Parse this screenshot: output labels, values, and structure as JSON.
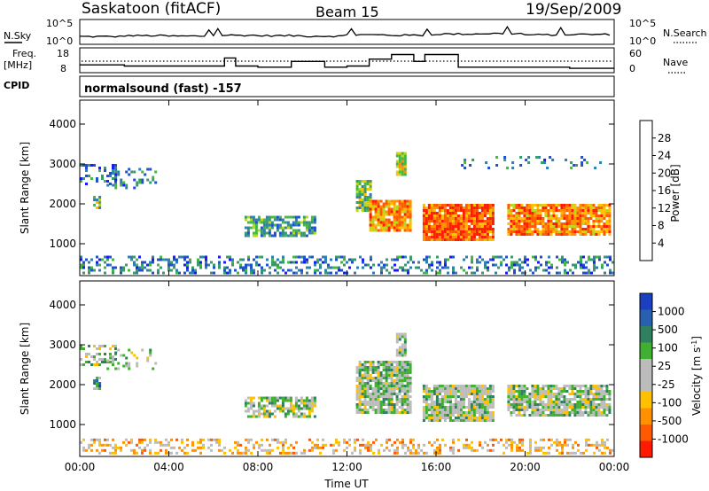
{
  "header": {
    "radar": "Saskatoon (fitACF)",
    "beam": "Beam 15",
    "date": "19/Sep/2009"
  },
  "noise_panel": {
    "left_label": "N.Sky",
    "right_label": "N.Search",
    "ticks_left": [
      "10^5",
      "10^0"
    ],
    "ticks_right": [
      "10^5",
      "10^0"
    ]
  },
  "freq_panel": {
    "left_label_line1": "Freq.",
    "left_label_line2": "[MHz]",
    "right_label": "Nave",
    "ticks_left": [
      "18",
      "8"
    ],
    "ticks_right": [
      "60",
      "0"
    ]
  },
  "cpid_panel": {
    "label": "CPID",
    "text": "normalsound (fast) -157"
  },
  "colors": {
    "power_scale": [
      "#1a1aff",
      "#2050d0",
      "#2f7fb0",
      "#3a9a6a",
      "#44b840",
      "#b8d820",
      "#ffc000",
      "#ff9000",
      "#ff5a00",
      "#ff1a00"
    ],
    "velocity_scale": [
      "#1a40c0",
      "#2860b0",
      "#2f8060",
      "#40b030",
      "#bcbcbc",
      "#bcbcbc",
      "#ffc000",
      "#ff9000",
      "#ff5a00",
      "#ff1a00"
    ]
  },
  "chart_data": [
    {
      "type": "line",
      "name": "noise",
      "x": [
        "00:00",
        "02:00",
        "04:00",
        "06:00",
        "08:00",
        "10:00",
        "12:00",
        "14:00",
        "16:00",
        "18:00",
        "20:00",
        "22:00",
        "24:00"
      ],
      "series": [
        {
          "name": "N.Sky",
          "values": [
            1.2,
            1.4,
            1.3,
            1.5,
            1.4,
            1.3,
            1.6,
            1.5,
            1.8,
            1.9,
            1.6,
            1.7,
            1.9
          ]
        }
      ],
      "ylim_label": [
        "10^0",
        "10^5"
      ]
    },
    {
      "type": "line",
      "name": "frequency",
      "x": [
        "00:00",
        "01:00",
        "02:00",
        "04:00",
        "06:00",
        "06:30",
        "07:00",
        "08:00",
        "09:00",
        "09:30",
        "11:00",
        "12:00",
        "13:00",
        "14:00",
        "15:00",
        "15:30",
        "17:00",
        "20:00",
        "22:00",
        "24:00"
      ],
      "series": [
        {
          "name": "Freq",
          "values": [
            11.0,
            11.0,
            10.5,
            10.5,
            10.5,
            14.0,
            10.5,
            10.0,
            10.0,
            12.5,
            10.0,
            10.5,
            13.5,
            15.5,
            12.5,
            15.5,
            10.0,
            10.0,
            9.5,
            9.5
          ]
        }
      ],
      "ylim": [
        8,
        18
      ]
    },
    {
      "type": "heatmap",
      "name": "power",
      "xlabel": "",
      "ylabel": "Slant Range [km]",
      "xlim": [
        "00:00",
        "24:00"
      ],
      "ylim": [
        200,
        4600
      ],
      "yticks": [
        1000,
        2000,
        3000,
        4000
      ],
      "colorbar": {
        "label": "Power [dB]",
        "ticks": [
          4,
          8,
          12,
          16,
          20,
          24,
          28
        ],
        "range": [
          0,
          30
        ]
      },
      "regions": [
        {
          "t0": 0.0,
          "t1": 1.6,
          "r0": 2500,
          "r1": 3000,
          "level": 7,
          "density": 0.4
        },
        {
          "t0": 0.6,
          "t1": 0.9,
          "r0": 1900,
          "r1": 2200,
          "level": 12,
          "density": 0.7
        },
        {
          "t0": 1.2,
          "t1": 3.4,
          "r0": 2400,
          "r1": 2900,
          "level": 6,
          "density": 0.3
        },
        {
          "t0": 7.4,
          "t1": 10.6,
          "r0": 1200,
          "r1": 1700,
          "level": 9,
          "density": 0.7
        },
        {
          "t0": 12.4,
          "t1": 13.0,
          "r0": 1800,
          "r1": 2600,
          "level": 14,
          "density": 0.8
        },
        {
          "t0": 13.0,
          "t1": 14.8,
          "r0": 1300,
          "r1": 2100,
          "level": 24,
          "density": 0.9
        },
        {
          "t0": 14.2,
          "t1": 14.6,
          "r0": 2700,
          "r1": 3300,
          "level": 18,
          "density": 0.9
        },
        {
          "t0": 15.4,
          "t1": 18.6,
          "r0": 1100,
          "r1": 2000,
          "level": 25,
          "density": 0.95
        },
        {
          "t0": 19.2,
          "t1": 23.8,
          "r0": 1200,
          "r1": 2000,
          "level": 24,
          "density": 0.9
        },
        {
          "t0": 17.0,
          "t1": 23.5,
          "r0": 2900,
          "r1": 3200,
          "level": 6,
          "density": 0.15
        },
        {
          "t0": 0.0,
          "t1": 24.0,
          "r0": 250,
          "r1": 700,
          "level": 8,
          "density": 0.35
        }
      ]
    },
    {
      "type": "heatmap",
      "name": "velocity",
      "xlabel": "Time UT",
      "ylabel": "Slant Range [km]",
      "xlim": [
        "00:00",
        "24:00"
      ],
      "ylim": [
        200,
        4600
      ],
      "xticks": [
        "00:00",
        "04:00",
        "08:00",
        "12:00",
        "16:00",
        "20:00",
        "00:00"
      ],
      "yticks": [
        1000,
        2000,
        3000,
        4000
      ],
      "colorbar": {
        "label": "Velocity [m s^-1]",
        "ticks": [
          1000,
          500,
          100,
          25,
          -25,
          -100,
          -500,
          -1000
        ]
      },
      "regions": [
        {
          "t0": 0.0,
          "t1": 1.6,
          "r0": 2500,
          "r1": 3000,
          "level": 4,
          "density": 0.35
        },
        {
          "t0": 0.6,
          "t1": 0.9,
          "r0": 1900,
          "r1": 2200,
          "level": 2,
          "density": 0.7
        },
        {
          "t0": 1.2,
          "t1": 3.4,
          "r0": 2400,
          "r1": 2900,
          "level": 4,
          "density": 0.25
        },
        {
          "t0": 7.4,
          "t1": 10.6,
          "r0": 1200,
          "r1": 1700,
          "level": 4,
          "density": 0.7
        },
        {
          "t0": 12.4,
          "t1": 14.8,
          "r0": 1300,
          "r1": 2600,
          "level": 4,
          "density": 0.85
        },
        {
          "t0": 14.2,
          "t1": 14.6,
          "r0": 2700,
          "r1": 3300,
          "level": 4,
          "density": 0.9
        },
        {
          "t0": 15.4,
          "t1": 18.6,
          "r0": 1100,
          "r1": 2000,
          "level": 4,
          "density": 0.9
        },
        {
          "t0": 19.2,
          "t1": 23.8,
          "r0": 1200,
          "r1": 2000,
          "level": 4,
          "density": 0.85
        },
        {
          "t0": 0.0,
          "t1": 24.0,
          "r0": 250,
          "r1": 650,
          "level": 6,
          "density": 0.35
        }
      ]
    }
  ],
  "axis": {
    "xlabel": "Time UT",
    "xticks": [
      "00:00",
      "04:00",
      "08:00",
      "12:00",
      "16:00",
      "20:00",
      "00:00"
    ],
    "ylabel": "Slant Range [km]",
    "yticks": [
      "1000",
      "2000",
      "3000",
      "4000"
    ]
  },
  "power_colorbar": {
    "label": "Power [dB]",
    "ticks": [
      "4",
      "8",
      "12",
      "16",
      "20",
      "24",
      "28"
    ]
  },
  "velocity_colorbar": {
    "label": "Velocity [m s",
    "sup": "-1",
    "label_end": "]",
    "ticks": [
      "1000",
      "500",
      "100",
      "25",
      "-25",
      "-100",
      "-500",
      "-1000"
    ]
  }
}
